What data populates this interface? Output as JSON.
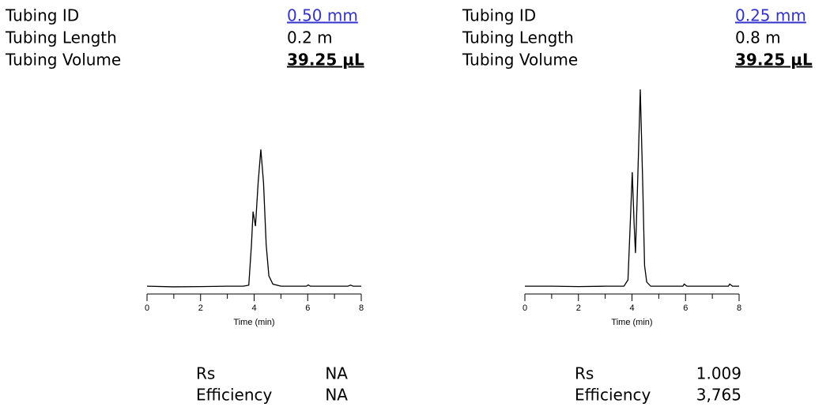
{
  "panels": [
    {
      "specs": [
        {
          "label": "Tubing ID",
          "value": "0.50 mm"
        },
        {
          "label": "Tubing Length",
          "value": "0.2 m"
        },
        {
          "label": "Tubing Volume",
          "value": "39.25 µL"
        }
      ],
      "stats": [
        {
          "label": "Rs",
          "value": "NA"
        },
        {
          "label": "Efficiency",
          "value": "NA"
        }
      ]
    },
    {
      "specs": [
        {
          "label": "Tubing ID",
          "value": "0.25 mm"
        },
        {
          "label": "Tubing Length",
          "value": "0.8 m"
        },
        {
          "label": "Tubing Volume",
          "value": "39.25 µL"
        }
      ],
      "stats": [
        {
          "label": "Rs",
          "value": "1.009"
        },
        {
          "label": "Efficiency",
          "value": "3,765"
        }
      ]
    }
  ],
  "chart_data": [
    {
      "type": "line",
      "x_label": "Time (min)",
      "color": "#000000",
      "xlim": [
        0,
        8
      ],
      "xticks": [
        0,
        2,
        4,
        6,
        8
      ],
      "ylim": [
        -3,
        100
      ],
      "x": [
        0,
        1,
        2,
        3,
        3.6,
        3.8,
        3.9,
        3.96,
        4.05,
        4.15,
        4.25,
        4.35,
        4.45,
        4.55,
        4.7,
        5,
        5.95,
        6.02,
        6.1,
        7.5,
        7.6,
        7.7,
        8
      ],
      "values": [
        0,
        -0.3,
        -0.2,
        0,
        0,
        0.5,
        20,
        36,
        29,
        50,
        66,
        50,
        20,
        5,
        1,
        0,
        0,
        0.6,
        0,
        0,
        0.5,
        0,
        0
      ]
    },
    {
      "type": "line",
      "x_label": "Time (min)",
      "color": "#000000",
      "xlim": [
        0,
        8
      ],
      "xticks": [
        0,
        2,
        4,
        6,
        8
      ],
      "ylim": [
        -3,
        100
      ],
      "x": [
        0,
        1,
        2,
        3,
        3.7,
        3.85,
        3.95,
        4.01,
        4.08,
        4.13,
        4.2,
        4.31,
        4.4,
        4.47,
        4.55,
        4.7,
        5.9,
        5.95,
        6.05,
        7.6,
        7.65,
        7.75,
        8
      ],
      "values": [
        0,
        0,
        -0.2,
        0,
        0,
        3,
        35,
        55,
        30,
        16,
        45,
        95,
        50,
        10,
        2,
        0,
        0,
        1,
        0,
        0,
        1,
        0,
        0
      ]
    }
  ]
}
